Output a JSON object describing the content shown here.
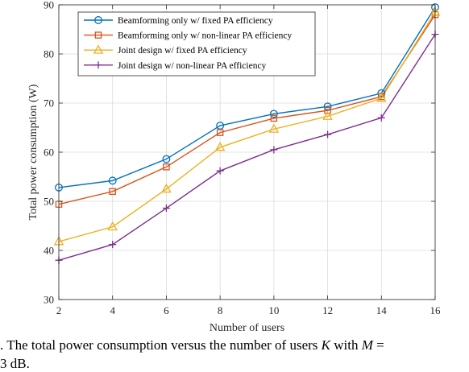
{
  "chart_data": {
    "type": "line",
    "title": "",
    "xlabel": "Number of users",
    "ylabel": "Total power consumption (W)",
    "x": [
      2,
      4,
      6,
      8,
      10,
      12,
      14,
      16
    ],
    "xlim": [
      2,
      16
    ],
    "ylim": [
      30,
      90
    ],
    "xticks": [
      "2",
      "4",
      "6",
      "8",
      "10",
      "12",
      "14",
      "16"
    ],
    "yticks": [
      "30",
      "40",
      "50",
      "60",
      "70",
      "80",
      "90"
    ],
    "grid": true,
    "legend_position": "top-left",
    "series": [
      {
        "name": "Beamforming only w/ fixed PA efficiency",
        "color": "#0072BD",
        "marker": "circle",
        "values": [
          52.8,
          54.2,
          58.6,
          65.4,
          67.8,
          69.3,
          72.0,
          89.5
        ]
      },
      {
        "name": "Beamforming only w/ non-linear PA efficiency",
        "color": "#D95319",
        "marker": "square",
        "values": [
          49.4,
          52.0,
          57.0,
          64.0,
          66.9,
          68.5,
          71.3,
          88.0
        ]
      },
      {
        "name": "Joint design w/ fixed PA efficiency",
        "color": "#EDB120",
        "marker": "triangle",
        "values": [
          41.8,
          44.8,
          52.5,
          61.0,
          64.7,
          67.3,
          71.0,
          88.5
        ]
      },
      {
        "name": "Joint design w/ non-linear PA efficiency",
        "color": "#7E2F8E",
        "marker": "plus",
        "values": [
          38.0,
          41.2,
          48.6,
          56.2,
          60.5,
          63.6,
          67.0,
          84.0
        ]
      }
    ]
  },
  "caption": {
    "line1_a": ". The total power consumption versus the number of users ",
    "line1_var": "K",
    "line1_b": " with ",
    "line1_var2": "M",
    "line1_c": " =",
    "line2": "3 dB."
  }
}
